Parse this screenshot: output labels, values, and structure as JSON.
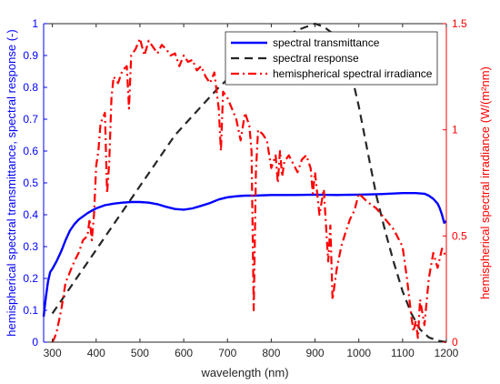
{
  "chart_data": {
    "type": "line",
    "xlabel": "wavelength (nm)",
    "ylabel_left": "hemispherical spectral transmittance, spectral response (-)",
    "ylabel_right": "hemispherical spectral irradiance (W/(m²nm)",
    "xlim": [
      280,
      1200
    ],
    "ylim_left": [
      0,
      1
    ],
    "ylim_right": [
      0,
      1.5
    ],
    "x_ticks": [
      300,
      400,
      500,
      600,
      700,
      800,
      900,
      1000,
      1100,
      1200
    ],
    "y_left_ticks": [
      "0",
      "0.1",
      "0.2",
      "0.3",
      "0.4",
      "0.5",
      "0.6",
      "0.7",
      "0.8",
      "0.9",
      "1"
    ],
    "y_right_ticks": [
      "0",
      "0.5",
      "1",
      "1.5"
    ],
    "grid": false,
    "legend_position": "top-right",
    "series": [
      {
        "name": "spectral transmittance",
        "axis": "left",
        "color": "#0000ff",
        "style": "solid",
        "x": [
          280,
          285,
          290,
          295,
          300,
          310,
          320,
          330,
          340,
          350,
          360,
          370,
          380,
          390,
          400,
          420,
          440,
          460,
          480,
          500,
          520,
          540,
          560,
          580,
          600,
          620,
          640,
          660,
          680,
          700,
          720,
          740,
          760,
          800,
          850,
          900,
          950,
          1000,
          1050,
          1100,
          1130,
          1150,
          1160,
          1170,
          1180,
          1185,
          1190,
          1195,
          1200
        ],
        "y": [
          0.08,
          0.14,
          0.19,
          0.22,
          0.23,
          0.255,
          0.285,
          0.32,
          0.35,
          0.37,
          0.385,
          0.395,
          0.405,
          0.413,
          0.42,
          0.43,
          0.435,
          0.438,
          0.44,
          0.44,
          0.438,
          0.433,
          0.425,
          0.418,
          0.416,
          0.42,
          0.428,
          0.437,
          0.448,
          0.455,
          0.458,
          0.46,
          0.46,
          0.462,
          0.462,
          0.463,
          0.462,
          0.463,
          0.465,
          0.468,
          0.468,
          0.466,
          0.46,
          0.45,
          0.435,
          0.42,
          0.4,
          0.375,
          0.38
        ]
      },
      {
        "name": "spectral response",
        "axis": "left",
        "color": "#262626",
        "style": "dashed",
        "x": [
          300,
          320,
          340,
          360,
          380,
          400,
          420,
          440,
          460,
          480,
          500,
          520,
          540,
          560,
          580,
          600,
          620,
          640,
          660,
          680,
          700,
          720,
          740,
          760,
          780,
          800,
          820,
          840,
          860,
          880,
          900,
          920,
          940,
          960,
          980,
          1000,
          1020,
          1040,
          1060,
          1080,
          1100,
          1120,
          1140,
          1160,
          1180,
          1200
        ],
        "y": [
          0.09,
          0.13,
          0.17,
          0.21,
          0.25,
          0.29,
          0.33,
          0.37,
          0.41,
          0.45,
          0.49,
          0.53,
          0.57,
          0.61,
          0.65,
          0.68,
          0.71,
          0.74,
          0.77,
          0.8,
          0.825,
          0.85,
          0.87,
          0.89,
          0.91,
          0.93,
          0.95,
          0.965,
          0.98,
          0.99,
          1.0,
          0.99,
          0.97,
          0.93,
          0.86,
          0.74,
          0.6,
          0.46,
          0.35,
          0.25,
          0.16,
          0.09,
          0.04,
          0.015,
          0.005,
          0.0
        ]
      },
      {
        "name": "hemispherical spectral irradiance",
        "axis": "right",
        "color": "#ff0000",
        "style": "dashdot",
        "x": [
          300,
          305,
          310,
          320,
          330,
          340,
          350,
          360,
          370,
          380,
          385,
          390,
          395,
          400,
          405,
          410,
          420,
          425,
          430,
          435,
          440,
          450,
          460,
          470,
          475,
          480,
          490,
          500,
          510,
          520,
          530,
          540,
          550,
          560,
          570,
          580,
          590,
          600,
          610,
          620,
          630,
          640,
          650,
          660,
          670,
          680,
          685,
          690,
          700,
          710,
          720,
          730,
          740,
          750,
          755,
          760,
          765,
          770,
          780,
          790,
          800,
          810,
          815,
          820,
          825,
          830,
          840,
          850,
          860,
          870,
          880,
          890,
          895,
          900,
          910,
          920,
          930,
          935,
          940,
          950,
          960,
          970,
          980,
          990,
          1000,
          1020,
          1040,
          1060,
          1080,
          1100,
          1110,
          1120,
          1125,
          1130,
          1135,
          1140,
          1150,
          1160,
          1170,
          1180,
          1190,
          1200
        ],
        "y": [
          0.0,
          0.02,
          0.05,
          0.15,
          0.28,
          0.33,
          0.38,
          0.42,
          0.48,
          0.5,
          0.58,
          0.48,
          0.6,
          0.83,
          0.9,
          1.03,
          1.08,
          0.7,
          0.85,
          1.15,
          1.25,
          1.22,
          1.28,
          1.3,
          1.1,
          1.35,
          1.38,
          1.43,
          1.35,
          1.42,
          1.39,
          1.36,
          1.4,
          1.38,
          1.35,
          1.36,
          1.3,
          1.35,
          1.32,
          1.33,
          1.28,
          1.3,
          1.25,
          1.22,
          1.27,
          1.1,
          0.9,
          1.18,
          1.15,
          1.1,
          1.05,
          0.95,
          1.08,
          1.02,
          0.9,
          0.15,
          0.8,
          1.0,
          0.98,
          0.95,
          0.82,
          0.88,
          0.75,
          0.9,
          0.78,
          0.85,
          0.88,
          0.84,
          0.8,
          0.86,
          0.88,
          0.82,
          0.7,
          0.8,
          0.6,
          0.72,
          0.38,
          0.55,
          0.2,
          0.35,
          0.45,
          0.52,
          0.58,
          0.62,
          0.7,
          0.66,
          0.63,
          0.58,
          0.53,
          0.45,
          0.3,
          0.12,
          0.05,
          0.1,
          0.02,
          0.2,
          0.08,
          0.3,
          0.42,
          0.35,
          0.44,
          0.4
        ]
      }
    ]
  }
}
